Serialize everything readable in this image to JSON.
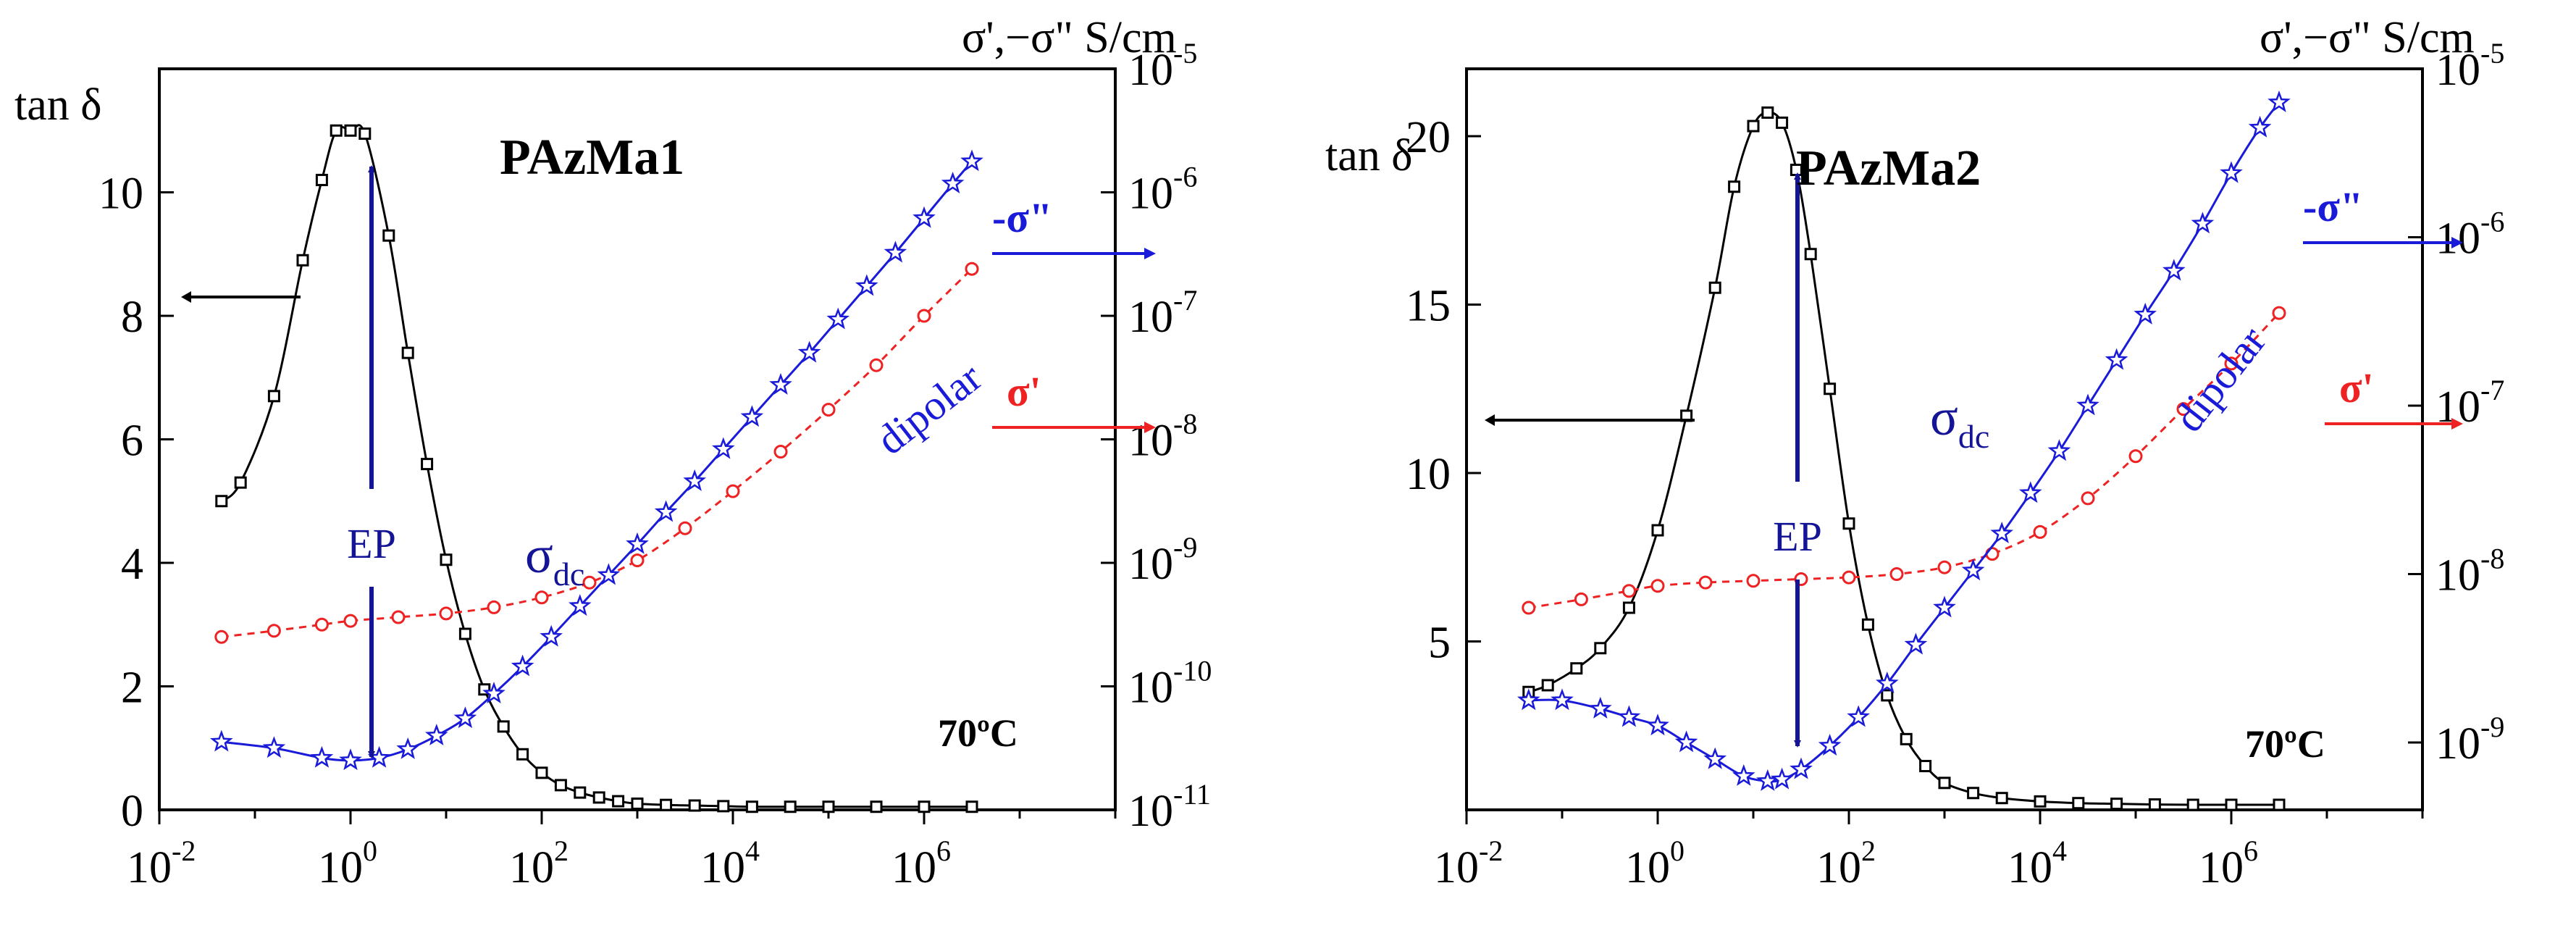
{
  "colors": {
    "tan_delta": "#000000",
    "sigma_double_prime": "#1a1ad9",
    "sigma_prime": "#ee2222",
    "ep_arrow": "#141496"
  },
  "chart_data": [
    {
      "type": "line",
      "title": "PAzMa1",
      "temperature_label": "70ºC",
      "x_axis": {
        "scale": "log",
        "range": [
          0.01,
          100000000
        ],
        "tick_exponents": [
          -2,
          0,
          2,
          4,
          6
        ],
        "tick_base": "10"
      },
      "left_axis": {
        "label": "tan δ",
        "range": [
          0,
          12
        ],
        "ticks": [
          "0",
          "2",
          "4",
          "6",
          "8",
          "10"
        ]
      },
      "right_axis": {
        "label": "σ',−σ\" S/cm",
        "scale": "log",
        "range_exponent": [
          -11,
          -5
        ],
        "tick_exponents": [
          -11,
          -10,
          -9,
          -8,
          -7,
          -6,
          -5
        ],
        "tick_base": "10"
      },
      "annotations": {
        "ep": "EP",
        "sigma_dc_main": "σ",
        "sigma_dc_sub": "dc",
        "dipolar": "dipolar",
        "s2_label": "-σ\"",
        "s1_label": "σ'"
      },
      "series": [
        {
          "name": "tan δ",
          "axis": "left",
          "marker": "square",
          "logx": [
            -1.35,
            -1.15,
            -0.8,
            -0.5,
            -0.3,
            -0.15,
            0,
            0.15,
            0.4,
            0.6,
            0.8,
            1.0,
            1.2,
            1.4,
            1.6,
            1.8,
            2.0,
            2.2,
            2.4,
            2.6,
            2.8,
            3.0,
            3.3,
            3.6,
            3.9,
            4.2,
            4.6,
            5.0,
            5.5,
            6.0,
            6.5
          ],
          "values": [
            5.0,
            5.3,
            6.7,
            8.9,
            10.2,
            11.0,
            11.0,
            10.95,
            9.3,
            7.4,
            5.6,
            4.05,
            2.85,
            1.95,
            1.35,
            0.9,
            0.6,
            0.4,
            0.28,
            0.2,
            0.14,
            0.1,
            0.08,
            0.07,
            0.06,
            0.05,
            0.05,
            0.05,
            0.05,
            0.05,
            0.05
          ]
        },
        {
          "name": "σ'",
          "axis": "right",
          "marker": "circle",
          "logx": [
            -1.35,
            -0.8,
            -0.3,
            0,
            0.5,
            1.0,
            1.5,
            2.0,
            2.5,
            3.0,
            3.5,
            4.0,
            4.5,
            5.0,
            5.5,
            6.0,
            6.5
          ],
          "log_values": [
            -9.6,
            -9.55,
            -9.5,
            -9.47,
            -9.44,
            -9.41,
            -9.36,
            -9.28,
            -9.16,
            -8.98,
            -8.72,
            -8.42,
            -8.1,
            -7.76,
            -7.4,
            -7.0,
            -6.62
          ]
        },
        {
          "name": "-σ\"",
          "axis": "right",
          "marker": "star",
          "logx": [
            -1.35,
            -0.8,
            -0.3,
            0,
            0.3,
            0.6,
            0.9,
            1.2,
            1.5,
            1.8,
            2.1,
            2.4,
            2.7,
            3.0,
            3.3,
            3.6,
            3.9,
            4.2,
            4.5,
            4.8,
            5.1,
            5.4,
            5.7,
            6.0,
            6.3,
            6.5
          ],
          "log_values": [
            -10.45,
            -10.5,
            -10.58,
            -10.6,
            -10.58,
            -10.51,
            -10.4,
            -10.26,
            -10.06,
            -9.84,
            -9.6,
            -9.35,
            -9.1,
            -8.85,
            -8.59,
            -8.34,
            -8.08,
            -7.82,
            -7.56,
            -7.3,
            -7.03,
            -6.76,
            -6.49,
            -6.21,
            -5.93,
            -5.75
          ]
        }
      ]
    },
    {
      "type": "line",
      "title": "PAzMa2",
      "temperature_label": "70ºC",
      "x_axis": {
        "scale": "log",
        "range": [
          0.01,
          100000000
        ],
        "tick_exponents": [
          -2,
          0,
          2,
          4,
          6
        ],
        "tick_base": "10"
      },
      "left_axis": {
        "label": "tan δ",
        "range": [
          0,
          22
        ],
        "ticks": [
          "5",
          "10",
          "15",
          "20"
        ]
      },
      "right_axis": {
        "label": "σ',−σ\" S/cm",
        "scale": "log",
        "range_exponent": [
          -9.4,
          -5
        ],
        "tick_exponents": [
          -9,
          -8,
          -7,
          -6,
          -5
        ],
        "tick_base": "10"
      },
      "annotations": {
        "ep": "EP",
        "sigma_dc_main": "σ",
        "sigma_dc_sub": "dc",
        "dipolar": "dipolar",
        "s2_label": "-σ\"",
        "s1_label": "σ'"
      },
      "series": [
        {
          "name": "tan δ",
          "axis": "left",
          "marker": "square",
          "logx": [
            -1.35,
            -1.15,
            -0.85,
            -0.6,
            -0.3,
            0,
            0.3,
            0.6,
            0.8,
            1.0,
            1.15,
            1.3,
            1.45,
            1.6,
            1.8,
            2.0,
            2.2,
            2.4,
            2.6,
            2.8,
            3.0,
            3.3,
            3.6,
            4.0,
            4.4,
            4.8,
            5.2,
            5.6,
            6.0,
            6.5
          ],
          "values": [
            3.5,
            3.7,
            4.2,
            4.8,
            6.0,
            8.3,
            11.7,
            15.5,
            18.5,
            20.3,
            20.7,
            20.4,
            19.0,
            16.5,
            12.5,
            8.5,
            5.5,
            3.4,
            2.1,
            1.3,
            0.8,
            0.5,
            0.35,
            0.25,
            0.2,
            0.18,
            0.16,
            0.15,
            0.15,
            0.15
          ]
        },
        {
          "name": "σ'",
          "axis": "right",
          "marker": "circle",
          "logx": [
            -1.35,
            -0.8,
            -0.3,
            0,
            0.5,
            1.0,
            1.5,
            2.0,
            2.5,
            3.0,
            3.5,
            4.0,
            4.5,
            5.0,
            5.5,
            6.0,
            6.5
          ],
          "log_values": [
            -8.2,
            -8.15,
            -8.1,
            -8.07,
            -8.05,
            -8.04,
            -8.03,
            -8.02,
            -8.0,
            -7.96,
            -7.88,
            -7.75,
            -7.55,
            -7.3,
            -7.02,
            -6.75,
            -6.45
          ]
        },
        {
          "name": "-σ\"",
          "axis": "right",
          "marker": "star",
          "logx": [
            -1.35,
            -1.0,
            -0.6,
            -0.3,
            0,
            0.3,
            0.6,
            0.9,
            1.15,
            1.3,
            1.5,
            1.8,
            2.1,
            2.4,
            2.7,
            3.0,
            3.3,
            3.6,
            3.9,
            4.2,
            4.5,
            4.8,
            5.1,
            5.4,
            5.7,
            6.0,
            6.3,
            6.5
          ],
          "log_values": [
            -8.75,
            -8.75,
            -8.8,
            -8.85,
            -8.9,
            -9.0,
            -9.1,
            -9.2,
            -9.23,
            -9.22,
            -9.16,
            -9.02,
            -8.85,
            -8.65,
            -8.42,
            -8.2,
            -7.98,
            -7.76,
            -7.52,
            -7.27,
            -7.0,
            -6.73,
            -6.46,
            -6.2,
            -5.92,
            -5.62,
            -5.35,
            -5.2
          ]
        }
      ]
    }
  ]
}
